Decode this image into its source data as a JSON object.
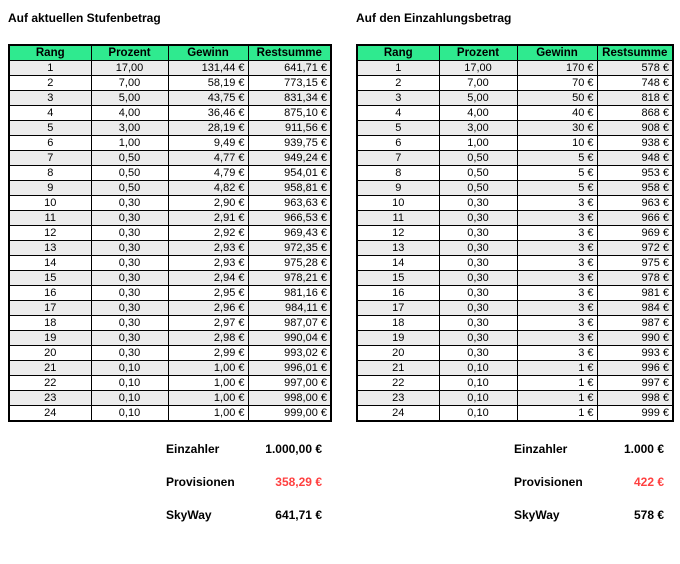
{
  "colors": {
    "header_green": "#2FEA8F",
    "stripe_gray": "#ECECEC",
    "highlight_red": "#FF4040",
    "text_black": "#000000"
  },
  "left": {
    "title": "Auf aktuellen Stufenbetrag",
    "headers": [
      "Rang",
      "Prozent",
      "Gewinn",
      "Restsumme"
    ],
    "rows": [
      [
        "1",
        "17,00",
        "131,44 €",
        "641,71 €"
      ],
      [
        "2",
        "7,00",
        "58,19 €",
        "773,15 €"
      ],
      [
        "3",
        "5,00",
        "43,75 €",
        "831,34 €"
      ],
      [
        "4",
        "4,00",
        "36,46 €",
        "875,10 €"
      ],
      [
        "5",
        "3,00",
        "28,19 €",
        "911,56 €"
      ],
      [
        "6",
        "1,00",
        "9,49 €",
        "939,75 €"
      ],
      [
        "7",
        "0,50",
        "4,77 €",
        "949,24 €"
      ],
      [
        "8",
        "0,50",
        "4,79 €",
        "954,01 €"
      ],
      [
        "9",
        "0,50",
        "4,82 €",
        "958,81 €"
      ],
      [
        "10",
        "0,30",
        "2,90 €",
        "963,63 €"
      ],
      [
        "11",
        "0,30",
        "2,91 €",
        "966,53 €"
      ],
      [
        "12",
        "0,30",
        "2,92 €",
        "969,43 €"
      ],
      [
        "13",
        "0,30",
        "2,93 €",
        "972,35 €"
      ],
      [
        "14",
        "0,30",
        "2,93 €",
        "975,28 €"
      ],
      [
        "15",
        "0,30",
        "2,94 €",
        "978,21 €"
      ],
      [
        "16",
        "0,30",
        "2,95 €",
        "981,16 €"
      ],
      [
        "17",
        "0,30",
        "2,96 €",
        "984,11 €"
      ],
      [
        "18",
        "0,30",
        "2,97 €",
        "987,07 €"
      ],
      [
        "19",
        "0,30",
        "2,98 €",
        "990,04 €"
      ],
      [
        "20",
        "0,30",
        "2,99 €",
        "993,02 €"
      ],
      [
        "21",
        "0,10",
        "1,00 €",
        "996,01 €"
      ],
      [
        "22",
        "0,10",
        "1,00 €",
        "997,00 €"
      ],
      [
        "23",
        "0,10",
        "1,00 €",
        "998,00 €"
      ],
      [
        "24",
        "0,10",
        "1,00 €",
        "999,00 €"
      ]
    ],
    "summary": [
      {
        "label": "Einzahler",
        "value": "1.000,00 €",
        "highlight": false
      },
      {
        "label": "Provisionen",
        "value": "358,29 €",
        "highlight": true
      },
      {
        "label": "SkyWay",
        "value": "641,71 €",
        "highlight": false
      }
    ]
  },
  "right": {
    "title": "Auf den Einzahlungsbetrag",
    "headers": [
      "Rang",
      "Prozent",
      "Gewinn",
      "Restsumme"
    ],
    "rows": [
      [
        "1",
        "17,00",
        "170 €",
        "578 €"
      ],
      [
        "2",
        "7,00",
        "70 €",
        "748 €"
      ],
      [
        "3",
        "5,00",
        "50 €",
        "818 €"
      ],
      [
        "4",
        "4,00",
        "40 €",
        "868 €"
      ],
      [
        "5",
        "3,00",
        "30 €",
        "908 €"
      ],
      [
        "6",
        "1,00",
        "10 €",
        "938 €"
      ],
      [
        "7",
        "0,50",
        "5 €",
        "948 €"
      ],
      [
        "8",
        "0,50",
        "5 €",
        "953 €"
      ],
      [
        "9",
        "0,50",
        "5 €",
        "958 €"
      ],
      [
        "10",
        "0,30",
        "3 €",
        "963 €"
      ],
      [
        "11",
        "0,30",
        "3 €",
        "966 €"
      ],
      [
        "12",
        "0,30",
        "3 €",
        "969 €"
      ],
      [
        "13",
        "0,30",
        "3 €",
        "972 €"
      ],
      [
        "14",
        "0,30",
        "3 €",
        "975 €"
      ],
      [
        "15",
        "0,30",
        "3 €",
        "978 €"
      ],
      [
        "16",
        "0,30",
        "3 €",
        "981 €"
      ],
      [
        "17",
        "0,30",
        "3 €",
        "984 €"
      ],
      [
        "18",
        "0,30",
        "3 €",
        "987 €"
      ],
      [
        "19",
        "0,30",
        "3 €",
        "990 €"
      ],
      [
        "20",
        "0,30",
        "3 €",
        "993 €"
      ],
      [
        "21",
        "0,10",
        "1 €",
        "996 €"
      ],
      [
        "22",
        "0,10",
        "1 €",
        "997 €"
      ],
      [
        "23",
        "0,10",
        "1 €",
        "998 €"
      ],
      [
        "24",
        "0,10",
        "1 €",
        "999 €"
      ]
    ],
    "summary": [
      {
        "label": "Einzahler",
        "value": "1.000 €",
        "highlight": false
      },
      {
        "label": "Provisionen",
        "value": "422 €",
        "highlight": true
      },
      {
        "label": "SkyWay",
        "value": "578 €",
        "highlight": false
      }
    ]
  }
}
